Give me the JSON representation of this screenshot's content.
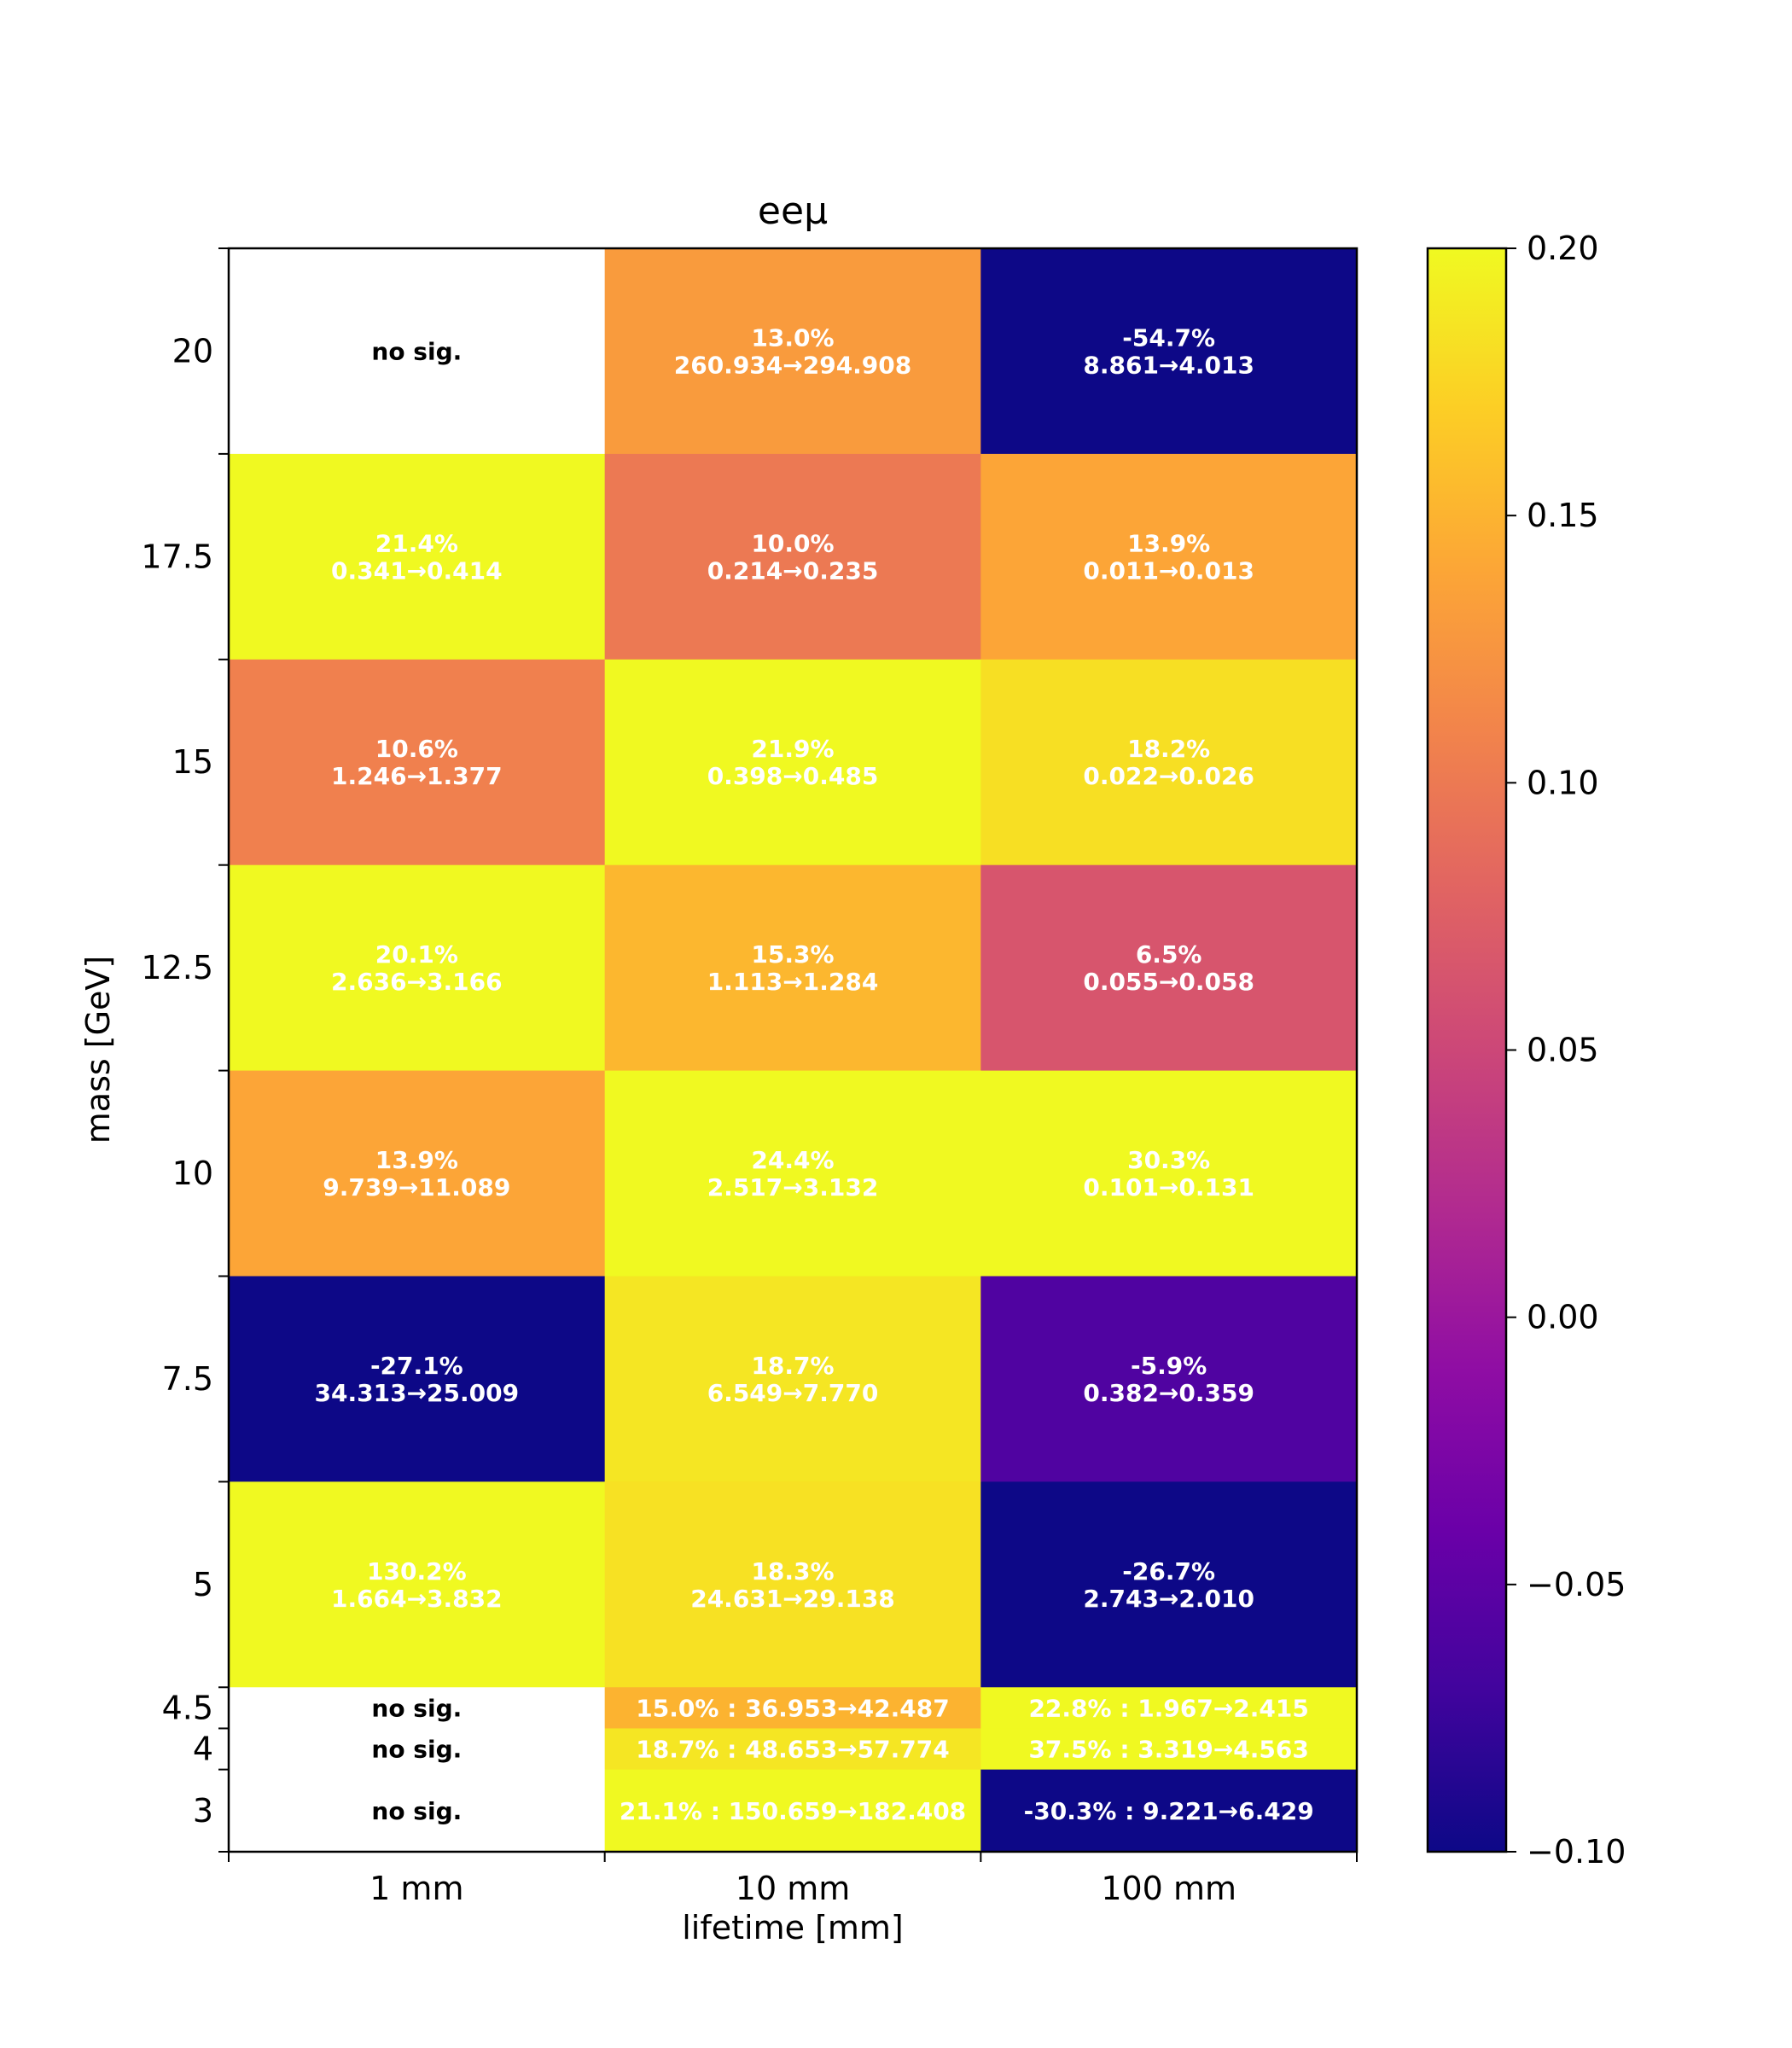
{
  "chart_data": {
    "type": "heatmap",
    "title": "eeμ",
    "xlabel": "lifetime [mm]",
    "ylabel": "mass [GeV]",
    "x_categories": [
      "1 mm",
      "10 mm",
      "100 mm"
    ],
    "y_bins": [
      {
        "label": "3",
        "lower": 2.0,
        "upper": 3.5
      },
      {
        "label": "4",
        "lower": 3.5,
        "upper": 4.25
      },
      {
        "label": "4.5",
        "lower": 4.25,
        "upper": 5.0
      },
      {
        "label": "5",
        "lower": 5.0,
        "upper": 8.75
      },
      {
        "label": "7.5",
        "lower": 8.75,
        "upper": 12.5
      },
      {
        "label": "10",
        "lower": 12.5,
        "upper": 16.25
      },
      {
        "label": "12.5",
        "lower": 16.25,
        "upper": 20.0
      },
      {
        "label": "15",
        "lower": 20.0,
        "upper": 23.75
      },
      {
        "label": "17.5",
        "lower": 23.75,
        "upper": 27.5
      },
      {
        "label": "20",
        "lower": 27.5,
        "upper": 31.25
      }
    ],
    "ylim": [
      2.0,
      31.25
    ],
    "colorbar": {
      "colormap": "plasma",
      "min": -0.1,
      "max": 0.2,
      "tick_labels": [
        "0.20",
        "0.15",
        "0.10",
        "0.05",
        "0.00",
        "−0.05",
        "−0.10"
      ],
      "tick_values": [
        0.2,
        0.15,
        0.1,
        0.05,
        0.0,
        -0.05,
        -0.1
      ]
    },
    "cells": [
      {
        "x": 0,
        "y": 9,
        "value": null,
        "lines": [
          "no sig."
        ]
      },
      {
        "x": 1,
        "y": 9,
        "value": 0.13,
        "lines": [
          "13.0%",
          "260.934→294.908"
        ]
      },
      {
        "x": 2,
        "y": 9,
        "value": -0.547,
        "lines": [
          "-54.7%",
          "8.861→4.013"
        ]
      },
      {
        "x": 0,
        "y": 8,
        "value": 0.214,
        "lines": [
          "21.4%",
          "0.341→0.414"
        ]
      },
      {
        "x": 1,
        "y": 8,
        "value": 0.1,
        "lines": [
          "10.0%",
          "0.214→0.235"
        ]
      },
      {
        "x": 2,
        "y": 8,
        "value": 0.139,
        "lines": [
          "13.9%",
          "0.011→0.013"
        ]
      },
      {
        "x": 0,
        "y": 7,
        "value": 0.106,
        "lines": [
          "10.6%",
          "1.246→1.377"
        ]
      },
      {
        "x": 1,
        "y": 7,
        "value": 0.219,
        "lines": [
          "21.9%",
          "0.398→0.485"
        ]
      },
      {
        "x": 2,
        "y": 7,
        "value": 0.182,
        "lines": [
          "18.2%",
          "0.022→0.026"
        ]
      },
      {
        "x": 0,
        "y": 6,
        "value": 0.201,
        "lines": [
          "20.1%",
          "2.636→3.166"
        ]
      },
      {
        "x": 1,
        "y": 6,
        "value": 0.153,
        "lines": [
          "15.3%",
          "1.113→1.284"
        ]
      },
      {
        "x": 2,
        "y": 6,
        "value": 0.065,
        "lines": [
          "6.5%",
          "0.055→0.058"
        ]
      },
      {
        "x": 0,
        "y": 5,
        "value": 0.139,
        "lines": [
          "13.9%",
          "9.739→11.089"
        ]
      },
      {
        "x": 1,
        "y": 5,
        "value": 0.244,
        "lines": [
          "24.4%",
          "2.517→3.132"
        ]
      },
      {
        "x": 2,
        "y": 5,
        "value": 0.303,
        "lines": [
          "30.3%",
          "0.101→0.131"
        ]
      },
      {
        "x": 0,
        "y": 4,
        "value": -0.271,
        "lines": [
          "-27.1%",
          "34.313→25.009"
        ]
      },
      {
        "x": 1,
        "y": 4,
        "value": 0.187,
        "lines": [
          "18.7%",
          "6.549→7.770"
        ]
      },
      {
        "x": 2,
        "y": 4,
        "value": -0.059,
        "lines": [
          "-5.9%",
          "0.382→0.359"
        ]
      },
      {
        "x": 0,
        "y": 3,
        "value": 1.302,
        "lines": [
          "130.2%",
          "1.664→3.832"
        ]
      },
      {
        "x": 1,
        "y": 3,
        "value": 0.183,
        "lines": [
          "18.3%",
          "24.631→29.138"
        ]
      },
      {
        "x": 2,
        "y": 3,
        "value": -0.267,
        "lines": [
          "-26.7%",
          "2.743→2.010"
        ]
      },
      {
        "x": 0,
        "y": 2,
        "value": null,
        "lines": [
          "no sig."
        ]
      },
      {
        "x": 1,
        "y": 2,
        "value": 0.15,
        "lines": [
          "15.0% : 36.953→42.487"
        ]
      },
      {
        "x": 2,
        "y": 2,
        "value": 0.228,
        "lines": [
          "22.8% : 1.967→2.415"
        ]
      },
      {
        "x": 0,
        "y": 1,
        "value": null,
        "lines": [
          "no sig."
        ]
      },
      {
        "x": 1,
        "y": 1,
        "value": 0.187,
        "lines": [
          "18.7% : 48.653→57.774"
        ]
      },
      {
        "x": 2,
        "y": 1,
        "value": 0.375,
        "lines": [
          "37.5% : 3.319→4.563"
        ]
      },
      {
        "x": 0,
        "y": 0,
        "value": null,
        "lines": [
          "no sig."
        ]
      },
      {
        "x": 1,
        "y": 0,
        "value": 0.211,
        "lines": [
          "21.1% : 150.659→182.408"
        ]
      },
      {
        "x": 2,
        "y": 0,
        "value": -0.303,
        "lines": [
          "-30.3% : 9.221→6.429"
        ]
      }
    ]
  }
}
